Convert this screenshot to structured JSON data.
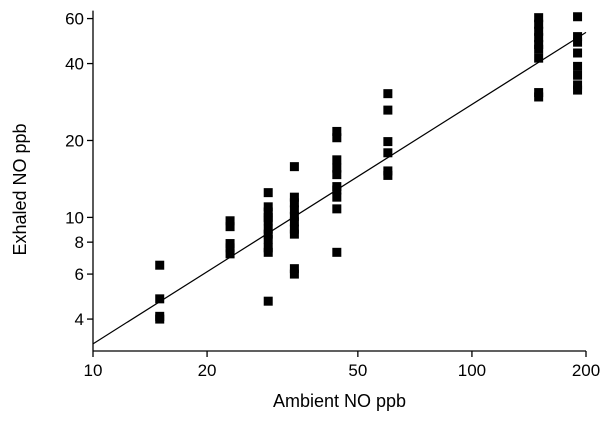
{
  "chart_data": {
    "type": "scatter",
    "title": "",
    "xlabel": "Ambient NO ppb",
    "ylabel": "Exhaled NO ppb",
    "xscale": "log",
    "yscale": "log",
    "xlim": [
      10,
      200
    ],
    "ylim": [
      3,
      66
    ],
    "xticks": [
      10,
      20,
      50,
      100,
      200
    ],
    "xtick_labels": [
      "10",
      "20",
      "50",
      "100",
      "200"
    ],
    "yticks": [
      4,
      6,
      8,
      10,
      20,
      40,
      60
    ],
    "ytick_labels": [
      "4",
      "6",
      "8",
      "10",
      "20",
      "40",
      "60"
    ],
    "grid": false,
    "legend": "none",
    "marker_color": "#000000",
    "series": [
      {
        "points": [
          [
            15,
            6.5
          ],
          [
            15,
            4.8
          ],
          [
            15,
            4.1
          ],
          [
            15,
            4.0
          ],
          [
            23,
            9.7
          ],
          [
            23,
            9.2
          ],
          [
            23,
            7.9
          ],
          [
            23,
            7.6
          ],
          [
            23,
            7.2
          ],
          [
            29,
            12.5
          ],
          [
            29,
            11.0
          ],
          [
            29,
            10.5
          ],
          [
            29,
            10.0
          ],
          [
            29,
            9.7
          ],
          [
            29,
            9.0
          ],
          [
            29,
            8.6
          ],
          [
            29,
            8.2
          ],
          [
            29,
            7.6
          ],
          [
            29,
            7.3
          ],
          [
            29,
            4.7
          ],
          [
            34,
            15.8
          ],
          [
            34,
            12.0
          ],
          [
            34,
            11.4
          ],
          [
            34,
            10.7
          ],
          [
            34,
            10.1
          ],
          [
            34,
            9.6
          ],
          [
            34,
            9.0
          ],
          [
            34,
            8.6
          ],
          [
            34,
            6.3
          ],
          [
            34,
            6.0
          ],
          [
            44,
            21.7
          ],
          [
            44,
            20.5
          ],
          [
            44,
            16.8
          ],
          [
            44,
            15.6
          ],
          [
            44,
            14.7
          ],
          [
            44,
            13.2
          ],
          [
            44,
            12.8
          ],
          [
            44,
            12.0
          ],
          [
            44,
            10.8
          ],
          [
            44,
            7.3
          ],
          [
            60,
            30.5
          ],
          [
            60,
            26.3
          ],
          [
            60,
            19.8
          ],
          [
            60,
            17.9
          ],
          [
            60,
            15.2
          ],
          [
            60,
            14.6
          ],
          [
            150,
            60.5
          ],
          [
            150,
            57.0
          ],
          [
            150,
            53.5
          ],
          [
            150,
            50.5
          ],
          [
            150,
            47.5
          ],
          [
            150,
            45.5
          ],
          [
            150,
            42.0
          ],
          [
            150,
            30.8
          ],
          [
            150,
            29.6
          ],
          [
            190,
            61.0
          ],
          [
            190,
            51.0
          ],
          [
            190,
            48.5
          ],
          [
            190,
            44.0
          ],
          [
            190,
            39.0
          ],
          [
            190,
            36.0
          ],
          [
            190,
            33.0
          ],
          [
            190,
            31.5
          ]
        ]
      }
    ],
    "fit_line": {
      "type": "linear-log-log",
      "points": [
        [
          10,
          3.2
        ],
        [
          200,
          53.0
        ]
      ]
    }
  }
}
